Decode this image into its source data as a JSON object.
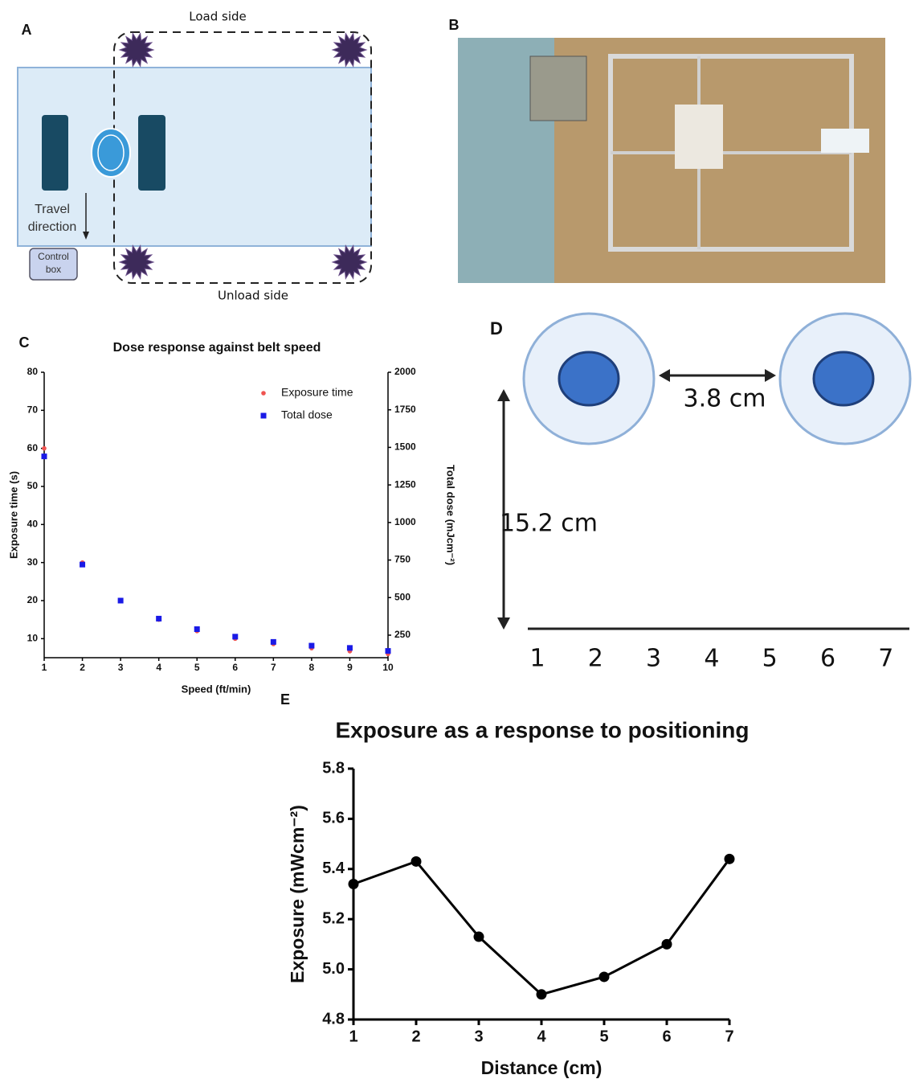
{
  "panel_labels": [
    "A",
    "B",
    "C",
    "D",
    "E"
  ],
  "panel_a": {
    "load_side": "Load side",
    "unload_side": "Unload side",
    "travel_direction": "Travel direction",
    "control_box": "Control box"
  },
  "panel_d": {
    "spacing": "3.8 cm",
    "height": "15.2 cm",
    "positions": [
      1,
      2,
      3,
      4,
      5,
      6,
      7
    ]
  },
  "chart_data": [
    {
      "type": "scatter",
      "title": "Dose response against belt speed",
      "x_label": "Speed (ft/min)",
      "y_label": "Exposure time (s)",
      "y2_label": "Total dose (mJcm⁻²)",
      "x": [
        1,
        2,
        3,
        4,
        5,
        6,
        7,
        8,
        9,
        10
      ],
      "xlim": [
        1,
        10
      ],
      "xticks": [
        1,
        2,
        3,
        4,
        5,
        6,
        7,
        8,
        9,
        10
      ],
      "ylim": [
        5,
        80
      ],
      "yticks": [
        10,
        20,
        30,
        40,
        50,
        60,
        70,
        80
      ],
      "y2lim": [
        100,
        2000
      ],
      "y2ticks": [
        250,
        500,
        750,
        1000,
        1250,
        1500,
        1750,
        2000
      ],
      "legend": "upper right",
      "series": [
        {
          "name": "Exposure time",
          "color": "#ef5350",
          "marker": "circle",
          "values": [
            60,
            30,
            20,
            15,
            12,
            10,
            8.6,
            7.5,
            6.7,
            6
          ]
        },
        {
          "name": "Total dose",
          "color": "#1a1ae6",
          "marker": "square",
          "axis": "y2",
          "values": [
            1440,
            720,
            480,
            360,
            290,
            240,
            205,
            180,
            165,
            145
          ]
        }
      ]
    },
    {
      "type": "line",
      "title": "Exposure as a response to positioning",
      "x_label": "Distance (cm)",
      "y_label": "Exposure (mWcm⁻²)",
      "x": [
        1,
        2,
        3,
        4,
        5,
        6,
        7
      ],
      "xlim": [
        1,
        7
      ],
      "xticks": [
        1,
        2,
        3,
        4,
        5,
        6,
        7
      ],
      "ylim": [
        4.8,
        5.8
      ],
      "yticks": [
        4.8,
        {
          "value": 5,
          "label": "5.0"
        },
        5.2,
        5.4,
        5.6,
        5.8
      ],
      "color": "#000000",
      "values": [
        5.34,
        5.43,
        5.13,
        4.9,
        4.97,
        5.1,
        5.44
      ]
    }
  ]
}
